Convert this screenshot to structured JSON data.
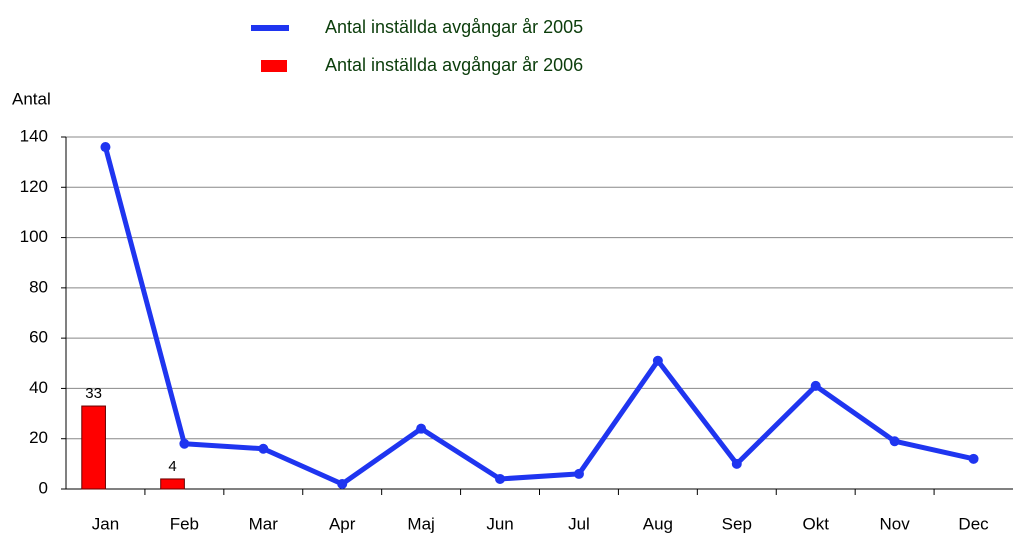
{
  "chart_data": {
    "type": "line",
    "y_label": "Antal",
    "categories": [
      "Jan",
      "Feb",
      "Mar",
      "Apr",
      "Maj",
      "Jun",
      "Jul",
      "Aug",
      "Sep",
      "Okt",
      "Nov",
      "Dec"
    ],
    "series": [
      {
        "name": "Antal inställda avgångar år 2005",
        "type": "line",
        "color": "#1f35f0",
        "values": [
          136,
          18,
          16,
          2,
          24,
          4,
          6,
          51,
          10,
          41,
          19,
          12
        ]
      },
      {
        "name": "Antal inställda avgångar år 2006",
        "type": "bar",
        "color": "#ff0000",
        "values": [
          33,
          4,
          null,
          null,
          null,
          null,
          null,
          null,
          null,
          null,
          null,
          null
        ]
      }
    ],
    "ylim": [
      0,
      140
    ],
    "yticks": [
      0,
      20,
      40,
      60,
      80,
      100,
      120,
      140
    ],
    "grid": true
  }
}
